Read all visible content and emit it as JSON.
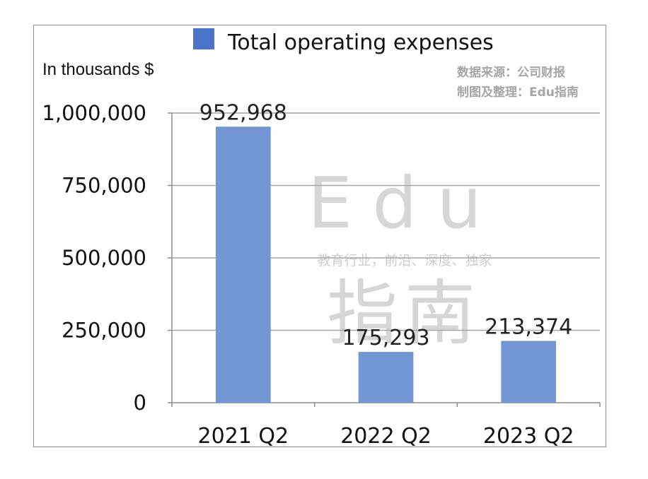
{
  "chart_data": {
    "type": "bar",
    "categories": [
      "2021 Q2",
      "2022 Q2",
      "2023 Q2"
    ],
    "series": [
      {
        "name": "Total operating expenses",
        "values": [
          952968,
          175293,
          213374
        ]
      }
    ],
    "data_labels": [
      "952,968",
      "175,293",
      "213,374"
    ],
    "y_tick_values": [
      0,
      250000,
      500000,
      750000,
      1000000
    ],
    "y_tick_labels": [
      "0",
      "250,000",
      "500,000",
      "750,000",
      "1,000,000"
    ],
    "ylim": [
      0,
      1000000
    ],
    "ylabel": "In thousands $",
    "legend_position": "top-center",
    "grid": true,
    "bar_color": "#7196d3",
    "legend_color": "#4a74c9"
  },
  "source_lines": [
    "数据来源：公司财报",
    "制图及整理：Edu指南"
  ],
  "watermark": {
    "line1": "Edu",
    "line2": "教育行业，前沿、深度、独家",
    "line3": "指南"
  }
}
